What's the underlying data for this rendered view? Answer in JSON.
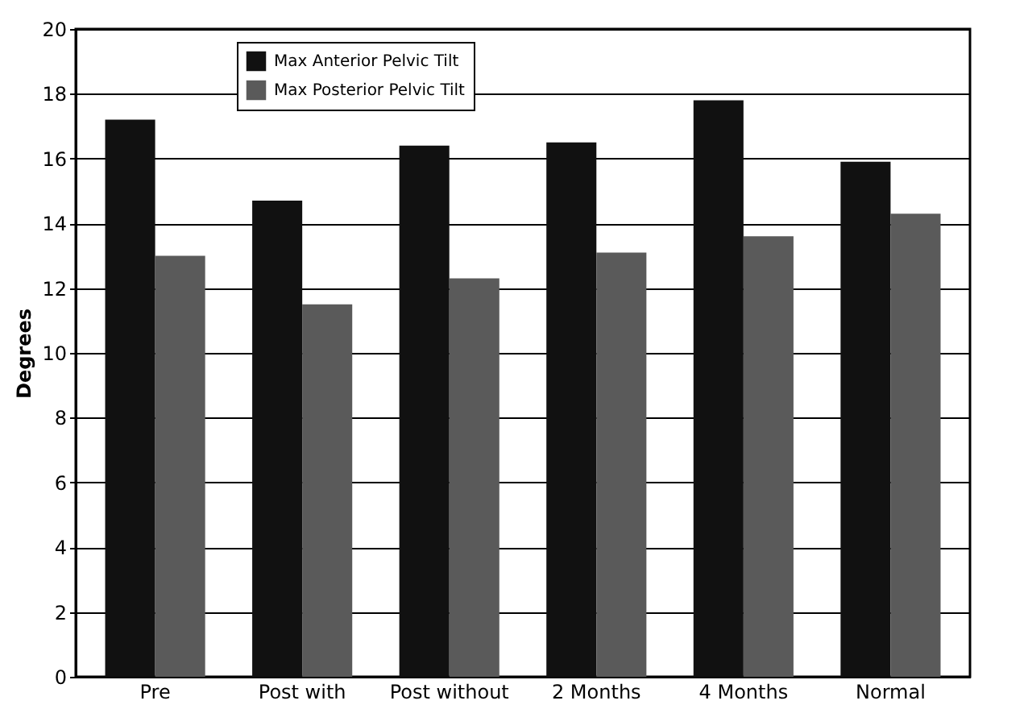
{
  "chart_data": {
    "type": "bar",
    "ylabel": "Degrees",
    "categories": [
      "Pre",
      "Post with",
      "Post without",
      "2 Months",
      "4 Months",
      "Normal"
    ],
    "series": [
      {
        "name": "Max Anterior Pelvic Tilt",
        "color": "#111111",
        "values": [
          17.2,
          14.7,
          16.4,
          16.5,
          17.8,
          15.9
        ]
      },
      {
        "name": "Max Posterior Pelvic Tilt",
        "color": "#5a5a5a",
        "values": [
          13.0,
          11.5,
          12.3,
          13.1,
          13.6,
          14.3
        ]
      }
    ],
    "ylim": [
      0,
      20
    ],
    "yticks": [
      0,
      2,
      4,
      6,
      8,
      10,
      12,
      14,
      16,
      18,
      20
    ],
    "grid": "y",
    "legend": "top left"
  }
}
